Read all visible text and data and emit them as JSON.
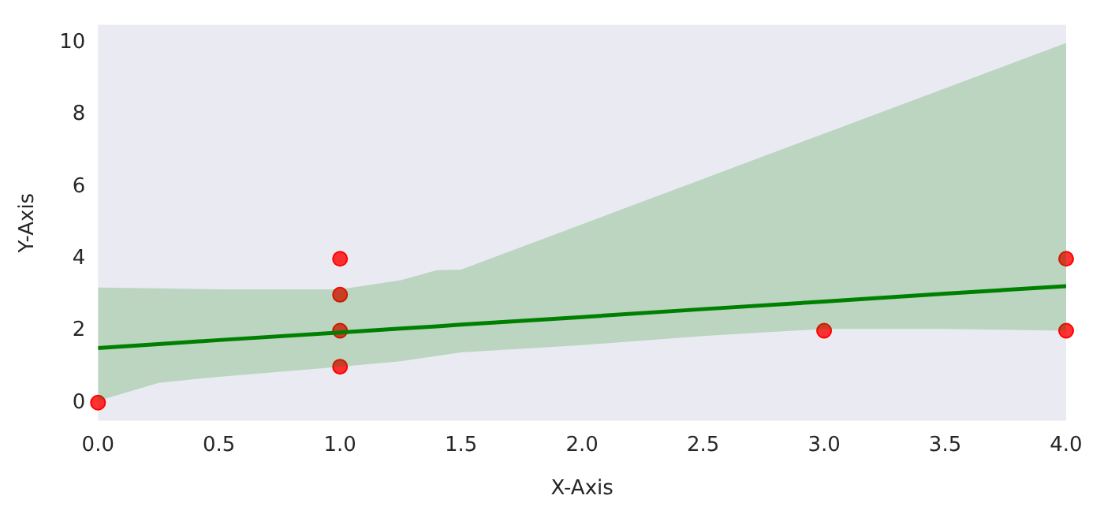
{
  "chart_data": {
    "type": "scatter",
    "xlabel": "X-Axis",
    "ylabel": "Y-Axis",
    "grid": false,
    "xlim": [
      0,
      4
    ],
    "ylim": [
      -0.5,
      10.5
    ],
    "xticks": [
      {
        "value": 0,
        "label": "0.0"
      },
      {
        "value": 0.5,
        "label": "0.5"
      },
      {
        "value": 1,
        "label": "1.0"
      },
      {
        "value": 1.5,
        "label": "1.5"
      },
      {
        "value": 2,
        "label": "2.0"
      },
      {
        "value": 2.5,
        "label": "2.5"
      },
      {
        "value": 3,
        "label": "3.0"
      },
      {
        "value": 3.5,
        "label": "3.5"
      },
      {
        "value": 4,
        "label": "4.0"
      }
    ],
    "yticks": [
      0,
      2,
      4,
      6,
      8,
      10
    ],
    "series": [
      {
        "type": "line",
        "color": "#008000",
        "x": [
          0,
          0.25,
          0.5,
          1,
          1.25,
          1.4,
          1.5,
          2,
          2.5,
          3,
          3.5,
          4
        ],
        "values": [
          1.52,
          1.63,
          1.74,
          1.95,
          2.06,
          2.12,
          2.17,
          2.38,
          2.6,
          2.81,
          3.03,
          3.24
        ],
        "lower": [
          0.05,
          0.55,
          0.72,
          1.0,
          1.15,
          1.3,
          1.4,
          1.6,
          1.85,
          2.05,
          2.05,
          2.0
        ],
        "upper": [
          3.2,
          3.18,
          3.15,
          3.15,
          3.4,
          3.68,
          3.7,
          4.96,
          6.22,
          7.48,
          8.74,
          10
        ]
      },
      {
        "type": "scatter",
        "color": "#ff0000",
        "marker": "circle",
        "x": [
          0,
          1,
          1,
          1,
          1,
          3,
          4,
          4
        ],
        "values": [
          0,
          4,
          3,
          2,
          1,
          2,
          4,
          2
        ]
      }
    ]
  }
}
